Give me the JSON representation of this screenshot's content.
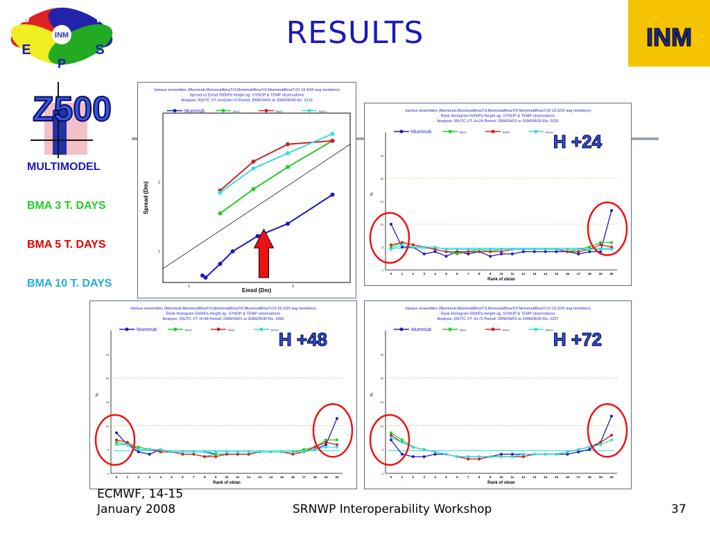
{
  "header": {
    "title": "RESULTS"
  },
  "logo": {
    "letters": [
      "S",
      "R",
      "E",
      "S",
      "P"
    ],
    "center_text": "INM",
    "icon": "srnwp-eps-logo"
  },
  "corner_logo": {
    "text": "INM",
    "icon": "inm-logo"
  },
  "z500_label": "Z500",
  "legend": {
    "items": [
      {
        "label": "MULTIMODEL",
        "color": "#1a1ab8"
      },
      {
        "label": "BMA 3 T. DAYS",
        "color": "#22cc22"
      },
      {
        "label": "BMA 5 T. DAYS",
        "color": "#dd0000"
      },
      {
        "label": "BMA 10 T. DAYS",
        "color": "#22aadd"
      }
    ]
  },
  "series_styles": {
    "Mummub": "#1a1ab8",
    "BMA3": "#22cc22",
    "BMA5": "#cc2222",
    "BMA10": "#33dddd"
  },
  "footer": {
    "left_line1": "ECMWF, 14-15",
    "left_line2": "January 2008",
    "center": "SRNWP Interoperability Workshop",
    "page": "37"
  },
  "chart_data": [
    {
      "type": "scatter",
      "id": "spread-skill",
      "title_lines": [
        "Various ensembles   (Mummub,MummubBmaTr3,MummubBmaTr5,MummubBmaTr10 16.4/20 avg members)",
        "Spread vs Emsd   500hPa Height   ag. SYNOP & TEMP observations",
        "Analysis: 00UTC  VT: H+6UH+72   Period:  2006/04/01 to 2006/06/30   Rs:  2219"
      ],
      "legend_first": "Mummub",
      "xlabel": "Emsd (Dm)",
      "ylabel": "Spread (Dm)",
      "xticks": [
        "1",
        "2"
      ],
      "yticks": [
        "1",
        "2"
      ],
      "xlim": [
        0.75,
        2.55
      ],
      "ylim": [
        0.55,
        3.0
      ],
      "series": [
        {
          "name": "Mummub",
          "points": [
            [
              1.13,
              0.65
            ],
            [
              1.16,
              0.62
            ],
            [
              1.3,
              0.82
            ],
            [
              1.42,
              1.0
            ],
            [
              1.66,
              1.22
            ],
            [
              1.95,
              1.4
            ],
            [
              2.38,
              1.82
            ]
          ]
        },
        {
          "name": "BMA3",
          "points": [
            [
              1.3,
              1.55
            ],
            [
              1.62,
              1.9
            ],
            [
              1.95,
              2.22
            ],
            [
              2.38,
              2.6
            ]
          ]
        },
        {
          "name": "BMA5",
          "points": [
            [
              1.3,
              1.88
            ],
            [
              1.62,
              2.3
            ],
            [
              1.95,
              2.55
            ],
            [
              2.38,
              2.6
            ]
          ]
        },
        {
          "name": "BMA10",
          "points": [
            [
              1.3,
              1.85
            ],
            [
              1.62,
              2.2
            ],
            [
              1.95,
              2.42
            ],
            [
              2.38,
              2.7
            ]
          ]
        }
      ]
    },
    {
      "type": "line",
      "id": "rank-h24",
      "badge": "H +24",
      "title_lines": [
        "Various ensembles   (Mummub,MummubBmaTr3,MummubBmaTr5,MummubBmaTr10 16.5/20 avg members)",
        "Rank Histogram   500hPa Height   ag. SYNOP & TEMP observations",
        "Analysis: 00UTC  VT: H+24   Period:  2006/04/01 to 2006/06/30   Rs:  2326"
      ],
      "legend_first": "Mummub",
      "xlabel": "Rank of ob/an",
      "ylabel": "%",
      "categories": [
        "0",
        "1",
        "2",
        "3",
        "4",
        "5",
        "6",
        "7",
        "8",
        "9",
        "10",
        "11",
        "12",
        "13",
        "14",
        "15",
        "16",
        "17",
        "18",
        "19",
        "20"
      ],
      "yticks": [
        "0",
        "5",
        "10",
        "15",
        "20",
        "25"
      ],
      "ylim": [
        0,
        30
      ],
      "series": [
        {
          "name": "Mummub",
          "values": [
            10,
            5,
            5,
            3.5,
            4,
            3,
            4,
            3.5,
            4,
            3,
            3.5,
            3.5,
            4,
            4,
            4,
            4,
            4,
            3.5,
            4,
            4,
            13
          ]
        },
        {
          "name": "BMA3",
          "values": [
            5,
            6,
            5.5,
            5,
            4.5,
            4,
            3.5,
            4,
            4.5,
            4,
            4.5,
            4.5,
            4.5,
            4.5,
            4.5,
            4.5,
            4,
            4.5,
            5,
            6,
            6
          ]
        },
        {
          "name": "BMA5",
          "values": [
            5.5,
            6,
            5.5,
            5,
            4.5,
            4,
            4,
            4,
            4,
            4,
            4,
            4.5,
            4.5,
            4.5,
            4.5,
            4.5,
            4,
            4,
            4.5,
            5.5,
            5
          ]
        },
        {
          "name": "BMA10",
          "values": [
            4.5,
            5.5,
            5,
            5,
            5,
            4.5,
            4.5,
            4.5,
            4.5,
            4.5,
            4.5,
            4.5,
            4.5,
            4.5,
            4.5,
            4.5,
            4.5,
            4.5,
            4.5,
            4.5,
            4.5
          ]
        }
      ]
    },
    {
      "type": "line",
      "id": "rank-h48",
      "badge": "H +48",
      "title_lines": [
        "Various ensembles   (Mummub,MummubBmaTr3,MummubBmaTr5,MummubBmaTr10 16.2/20 avg members)",
        "Rank Histogram   500hPa Height   ag. SYNOP & TEMP observations",
        "Analysis: 00UTC  VT: H+48   Period:  2006/04/01 to 2006/06/30   Rs:  1995"
      ],
      "legend_first": "Mummub",
      "xlabel": "Rank of ob/an",
      "ylabel": "%",
      "categories": [
        "0",
        "1",
        "2",
        "3",
        "4",
        "5",
        "6",
        "7",
        "8",
        "9",
        "10",
        "11",
        "12",
        "13",
        "14",
        "15",
        "16",
        "17",
        "18",
        "19",
        "20"
      ],
      "yticks": [
        "0",
        "5",
        "10",
        "15",
        "20",
        "25"
      ],
      "ylim": [
        0,
        30
      ],
      "series": [
        {
          "name": "Mummub",
          "values": [
            8.5,
            6,
            4.5,
            4,
            5,
            4.5,
            4.5,
            4.5,
            4.5,
            4,
            4,
            4,
            4,
            4.5,
            4.5,
            4.5,
            4.5,
            4.5,
            5,
            6,
            11.5
          ]
        },
        {
          "name": "BMA3",
          "values": [
            6.5,
            6,
            5.5,
            5,
            4.5,
            4.5,
            4,
            4,
            3.5,
            4,
            4,
            4,
            4,
            4.5,
            4.5,
            4.5,
            4.5,
            5,
            5.5,
            7,
            7
          ]
        },
        {
          "name": "BMA5",
          "values": [
            7,
            6.5,
            5,
            5,
            4.5,
            4.5,
            4,
            4,
            3.5,
            3.5,
            4,
            4,
            4,
            4.5,
            4.5,
            4.5,
            4,
            4.5,
            5.5,
            6.5,
            6
          ]
        },
        {
          "name": "BMA10",
          "values": [
            6,
            6,
            5,
            5,
            5,
            4.5,
            4.5,
            4.5,
            4.5,
            4.5,
            4.5,
            4.5,
            4.5,
            4.5,
            4.5,
            4.5,
            4.5,
            4.5,
            5,
            5.5,
            5.5
          ]
        }
      ]
    },
    {
      "type": "line",
      "id": "rank-h72",
      "badge": "H +72",
      "title_lines": [
        "Various ensembles   (Mummub,MummubBmaTr3,MummubBmaTr5,MummubBmaTr10 16.2/20 avg members)",
        "Rank Histogram   500hPa Height   ag. SYNOP & TEMP observations",
        "Analysis: 00UTC  VT: H+72   Period:  2006/04/01 to 2006/06/30   Rs:  2237"
      ],
      "legend_first": "Mummub",
      "xlabel": "Rank of ob/an",
      "ylabel": "%",
      "categories": [
        "0",
        "1",
        "2",
        "3",
        "4",
        "5",
        "6",
        "7",
        "8",
        "9",
        "10",
        "11",
        "12",
        "13",
        "14",
        "15",
        "16",
        "17",
        "18",
        "19",
        "20"
      ],
      "yticks": [
        "0",
        "5",
        "10",
        "15",
        "20",
        "25"
      ],
      "ylim": [
        0,
        30
      ],
      "series": [
        {
          "name": "Mummub",
          "values": [
            7,
            4,
            3.5,
            3.5,
            4,
            4,
            3.5,
            3.5,
            3.5,
            3.5,
            4,
            4,
            4,
            4,
            4,
            4,
            4,
            4.5,
            5,
            6.5,
            12
          ]
        },
        {
          "name": "BMA3",
          "values": [
            8.5,
            7,
            5.5,
            5,
            4.5,
            4,
            3.5,
            3,
            3,
            3.5,
            3.5,
            3.5,
            3.5,
            4,
            4,
            4,
            4.5,
            5,
            5.5,
            6.5,
            8
          ]
        },
        {
          "name": "BMA5",
          "values": [
            8,
            6.5,
            5.5,
            5,
            4.5,
            4,
            3.5,
            3,
            3,
            3.5,
            3.5,
            3.5,
            3.5,
            4,
            4,
            4,
            4.5,
            5,
            5.5,
            6.5,
            8
          ]
        },
        {
          "name": "BMA10",
          "values": [
            7.5,
            6.5,
            5.5,
            5,
            4.5,
            4,
            3.5,
            3.5,
            3.5,
            3.5,
            3.5,
            3.5,
            4,
            4,
            4,
            4,
            4.5,
            5,
            5.5,
            6,
            7
          ]
        }
      ]
    }
  ]
}
